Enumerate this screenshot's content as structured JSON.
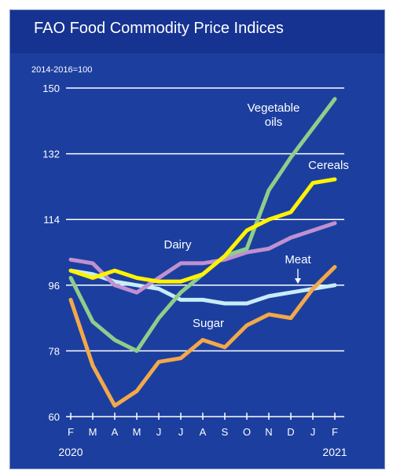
{
  "title": "FAO Food Commodity Price Indices",
  "colors": {
    "background": "#1c3f9f",
    "header": "#163392",
    "vegetable_oils": "#8fcd8a",
    "cereals": "#fff300",
    "dairy": "#c090d0",
    "meat": "#c8ecf8",
    "sugar": "#f3a84a"
  },
  "chart_data": {
    "type": "line",
    "title": "FAO Food Commodity Price Indices",
    "ylabel": "2014-2016=100",
    "ylim": [
      60,
      150
    ],
    "yticks": [
      60,
      78,
      96,
      114,
      132,
      150
    ],
    "grid": true,
    "categories": [
      "F",
      "M",
      "A",
      "M",
      "J",
      "J",
      "A",
      "S",
      "O",
      "N",
      "D",
      "J",
      "F"
    ],
    "year_labels": [
      {
        "text": "2020",
        "index": 0
      },
      {
        "text": "2021",
        "index": 12
      }
    ],
    "series": [
      {
        "key": "vegetable_oils",
        "name": "Vegetable oils",
        "label_lines": [
          "Vegetable",
          "oils"
        ],
        "values": [
          98,
          86,
          81,
          78,
          87,
          94,
          99,
          104,
          106,
          122,
          131,
          139,
          147
        ]
      },
      {
        "key": "cereals",
        "name": "Cereals",
        "label_lines": [
          "Cereals"
        ],
        "values": [
          100,
          98,
          100,
          98,
          97,
          97,
          99,
          104,
          111,
          114,
          116,
          124,
          125
        ]
      },
      {
        "key": "dairy",
        "name": "Dairy",
        "label_lines": [
          "Dairy"
        ],
        "values": [
          103,
          102,
          96,
          94,
          98,
          102,
          102,
          103,
          105,
          106,
          109,
          111,
          113
        ]
      },
      {
        "key": "meat",
        "name": "Meat",
        "label_lines": [
          "Meat"
        ],
        "values": [
          100,
          99,
          97,
          96,
          95,
          92,
          92,
          91,
          91,
          93,
          94,
          95,
          96
        ]
      },
      {
        "key": "sugar",
        "name": "Sugar",
        "label_lines": [
          "Sugar"
        ],
        "values": [
          92,
          74,
          63,
          67,
          75,
          76,
          81,
          79,
          85,
          88,
          87,
          95,
          101
        ]
      }
    ]
  }
}
